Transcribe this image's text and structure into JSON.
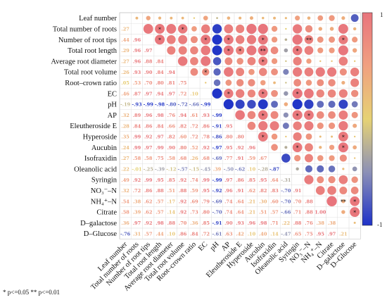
{
  "chart_data": {
    "type": "heatmap",
    "variables": [
      "Leaf number",
      "Total number of roots",
      "Number of root tips",
      "Total root length",
      "Average root diameter",
      "Total root volume",
      "Root–crown ratio",
      "EC",
      "pH",
      "AP",
      "Eleutheroside E",
      "Hyperoside",
      "Aucubin",
      "Isofraxidin",
      "Oleanolic acid",
      "Syringin",
      "NO3–N",
      "NH4–N",
      "Citrate",
      "D–galactose",
      "D–Glucose"
    ],
    "row_labels": [
      "Leaf number",
      "Total number of roots",
      "Number of root tips",
      "Total root length",
      "Average root diameter",
      "Total root volume",
      "Root–crown ratio",
      "EC",
      "pH",
      "AP",
      "Eleutheroside E",
      "Hyperoside",
      "Aucubin",
      "Isofraxidin",
      "Oleanolic acid",
      "Syringin",
      "NO₃⁻–N",
      "NH₄⁺–N",
      "Citrate",
      "D–galactose",
      "D–Glucose"
    ],
    "column_labels": [
      "Leaf number",
      "Total number of roots",
      "Number of root tips",
      "Total root length",
      "Average root diameter",
      "Total root volume",
      "Root–crown ratio",
      "EC",
      "pH",
      "AP",
      "Eleutheroside E",
      "Hyperoside",
      "Aucubin",
      "Isofraxidin",
      "Oleanolic acid",
      "Syringin",
      "NO₃⁻–N",
      "NH₄⁺–N",
      "Citrate",
      "D–galactose",
      "D–Glucose"
    ],
    "lower_triangle": [
      [],
      [
        0.27
      ],
      [
        0.44,
        0.96
      ],
      [
        0.29,
        0.96,
        0.97
      ],
      [
        0.27,
        0.96,
        0.88,
        0.84
      ],
      [
        0.26,
        0.93,
        0.9,
        0.84,
        0.94
      ],
      [
        0.05,
        0.53,
        0.7,
        0.8,
        0.81,
        0.75
      ],
      [
        0.46,
        0.87,
        0.97,
        0.94,
        0.97,
        0.72,
        0.1
      ],
      [
        -0.19,
        -0.93,
        -0.99,
        -0.98,
        -0.8,
        -0.72,
        -0.66,
        -0.99
      ],
      [
        0.32,
        0.89,
        0.96,
        0.98,
        0.76,
        0.94,
        0.61,
        0.93,
        -0.99
      ],
      [
        0.28,
        0.84,
        0.86,
        0.84,
        0.66,
        0.82,
        0.72,
        0.86,
        -0.91,
        0.95
      ],
      [
        0.35,
        0.99,
        0.92,
        0.97,
        0.82,
        0.6,
        0.72,
        0.78,
        -0.86,
        0.8,
        0.8
      ],
      [
        0.24,
        0.99,
        0.97,
        0.99,
        0.9,
        0.8,
        0.52,
        0.92,
        -0.97,
        0.95,
        0.92,
        0.96
      ],
      [
        0.27,
        0.58,
        0.58,
        0.75,
        0.58,
        0.68,
        0.26,
        0.68,
        -0.69,
        0.77,
        0.91,
        0.59,
        0.67
      ],
      [
        0.22,
        -0.01,
        -0.25,
        -0.39,
        -0.12,
        -0.57,
        -0.15,
        -0.45,
        0.39,
        -0.5,
        -0.62,
        0.1,
        -0.28,
        -0.87
      ],
      [
        0.49,
        0.92,
        0.99,
        0.95,
        0.85,
        0.92,
        0.74,
        0.99,
        -0.99,
        0.97,
        0.86,
        0.85,
        0.95,
        0.64,
        -0.31
      ],
      [
        0.32,
        0.72,
        0.86,
        0.88,
        0.51,
        0.88,
        0.59,
        0.95,
        -0.92,
        0.96,
        0.91,
        0.62,
        0.82,
        0.83,
        -0.7,
        0.91
      ],
      [
        0.54,
        0.38,
        0.62,
        0.57,
        0.17,
        0.92,
        0.69,
        0.79,
        -0.69,
        0.74,
        0.64,
        0.21,
        0.3,
        0.6,
        -0.7,
        0.7,
        0.88
      ],
      [
        0.58,
        0.39,
        0.62,
        0.57,
        0.14,
        0.92,
        0.73,
        0.8,
        -0.7,
        0.74,
        0.64,
        0.21,
        0.51,
        0.57,
        -0.66,
        0.71,
        0.88,
        1.0
      ],
      [
        0.36,
        0.97,
        0.92,
        0.98,
        0.88,
        0.7,
        0.36,
        0.85,
        -0.91,
        0.9,
        0.93,
        0.96,
        0.98,
        0.71,
        0.22,
        0.88,
        0.76,
        0.38,
        0.38
      ],
      [
        -0.76,
        0.31,
        0.57,
        0.44,
        0.1,
        0.86,
        0.84,
        0.72,
        -0.61,
        0.63,
        0.42,
        0.1,
        0.4,
        0.14,
        -0.47,
        0.65,
        0.75,
        0.95,
        0.97,
        0.21
      ]
    ],
    "upper_triangle_display": "circle size and colour proportional to correlation",
    "significance_marks": [
      {
        "row": 1,
        "col": 3,
        "mark": "*"
      },
      {
        "row": 1,
        "col": 5,
        "mark": "*"
      },
      {
        "row": 2,
        "col": 3,
        "mark": "*"
      },
      {
        "row": 2,
        "col": 7,
        "mark": "*"
      },
      {
        "row": 2,
        "col": 9,
        "mark": "*"
      },
      {
        "row": 2,
        "col": 12,
        "mark": "*"
      },
      {
        "row": 2,
        "col": 16,
        "mark": "**"
      },
      {
        "row": 2,
        "col": 19,
        "mark": "*"
      },
      {
        "row": 3,
        "col": 9,
        "mark": "*"
      },
      {
        "row": 3,
        "col": 10,
        "mark": "*"
      },
      {
        "row": 3,
        "col": 12,
        "mark": "**"
      },
      {
        "row": 3,
        "col": 15,
        "mark": "*"
      },
      {
        "row": 4,
        "col": 12,
        "mark": "*"
      },
      {
        "row": 5,
        "col": 7,
        "mark": "*"
      },
      {
        "row": 7,
        "col": 9,
        "mark": "*"
      },
      {
        "row": 7,
        "col": 12,
        "mark": "*"
      },
      {
        "row": 7,
        "col": 15,
        "mark": "*"
      },
      {
        "row": 9,
        "col": 12,
        "mark": "*"
      },
      {
        "row": 9,
        "col": 15,
        "mark": "*"
      },
      {
        "row": 9,
        "col": 16,
        "mark": "*"
      },
      {
        "row": 11,
        "col": 12,
        "mark": "*"
      },
      {
        "row": 11,
        "col": 19,
        "mark": "*"
      },
      {
        "row": 12,
        "col": 15,
        "mark": "*"
      },
      {
        "row": 12,
        "col": 19,
        "mark": "*"
      },
      {
        "row": 17,
        "col": 19,
        "mark": "**"
      },
      {
        "row": 17,
        "col": 20,
        "mark": "*"
      },
      {
        "row": 18,
        "col": 20,
        "mark": "*"
      }
    ],
    "colorbar": {
      "max_label": "1",
      "min_label": "-1",
      "colors": [
        "#e8747c",
        "#f0a080",
        "#e8d070",
        "#9aa0b0",
        "#2a3ac0"
      ]
    },
    "legend_text": "* p<=0.05   ** p<=0.01"
  }
}
